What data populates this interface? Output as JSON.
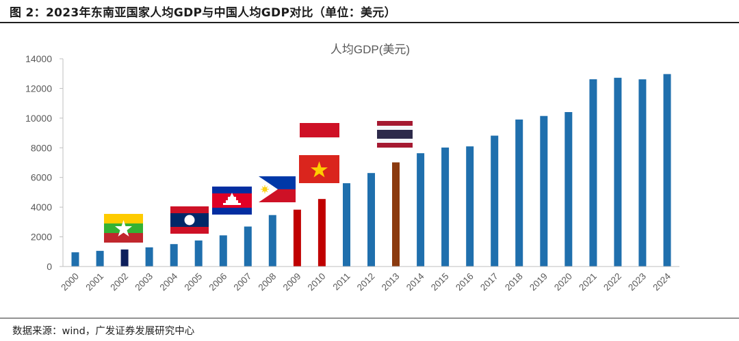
{
  "figure": {
    "title": "图 2：2023年东南亚国家人均GDP与中国人均GDP对比（单位：美元）",
    "source": "数据来源：wind，广发证券发展研究中心"
  },
  "chart_data": {
    "type": "bar",
    "title": "人均GDP(美元)",
    "xlabel": "",
    "ylabel": "",
    "ylim": [
      0,
      14000
    ],
    "yticks": [
      0,
      2000,
      4000,
      6000,
      8000,
      10000,
      12000,
      14000
    ],
    "grid": false,
    "legend": "none",
    "categories": [
      "2000",
      "2001",
      "2002",
      "2003",
      "2004",
      "2005",
      "2006",
      "2007",
      "2008",
      "2009",
      "2010",
      "2011",
      "2012",
      "2013",
      "2014",
      "2015",
      "2016",
      "2017",
      "2018",
      "2019",
      "2020",
      "2021",
      "2022",
      "2023",
      "2024"
    ],
    "series": [
      {
        "values": [
          959,
          1053,
          1149,
          1289,
          1509,
          1753,
          2099,
          2694,
          3468,
          3832,
          4550,
          5614,
          6301,
          7020,
          7636,
          8016,
          8094,
          8817,
          9905,
          10144,
          10409,
          12618,
          12720,
          12614,
          12969
        ],
        "colors": [
          "#1f6fad",
          "#1f6fad",
          "#0d1f5c",
          "#1f6fad",
          "#1f6fad",
          "#1f6fad",
          "#1f6fad",
          "#1f6fad",
          "#1f6fad",
          "#c00000",
          "#c00000",
          "#1f6fad",
          "#1f6fad",
          "#8b3a0f",
          "#1f6fad",
          "#1f6fad",
          "#1f6fad",
          "#1f6fad",
          "#1f6fad",
          "#1f6fad",
          "#1f6fad",
          "#1f6fad",
          "#1f6fad",
          "#1f6fad",
          "#1f6fad"
        ]
      }
    ],
    "axis_color": "#bfbfbf",
    "flags": [
      {
        "country": "myanmar",
        "year": "2002",
        "icon": "myanmar-flag-icon"
      },
      {
        "country": "laos",
        "year": "2005",
        "icon": "laos-flag-icon"
      },
      {
        "country": "cambodia",
        "year": "2007",
        "icon": "cambodia-flag-icon"
      },
      {
        "country": "philippines",
        "year": "2009",
        "icon": "philippines-flag-icon"
      },
      {
        "country": "vietnam",
        "year": "2010",
        "icon": "vietnam-flag-icon"
      },
      {
        "country": "indonesia",
        "year": "2010",
        "icon": "indonesia-flag-icon"
      },
      {
        "country": "thailand",
        "year": "2013",
        "icon": "thailand-flag-icon"
      }
    ]
  }
}
